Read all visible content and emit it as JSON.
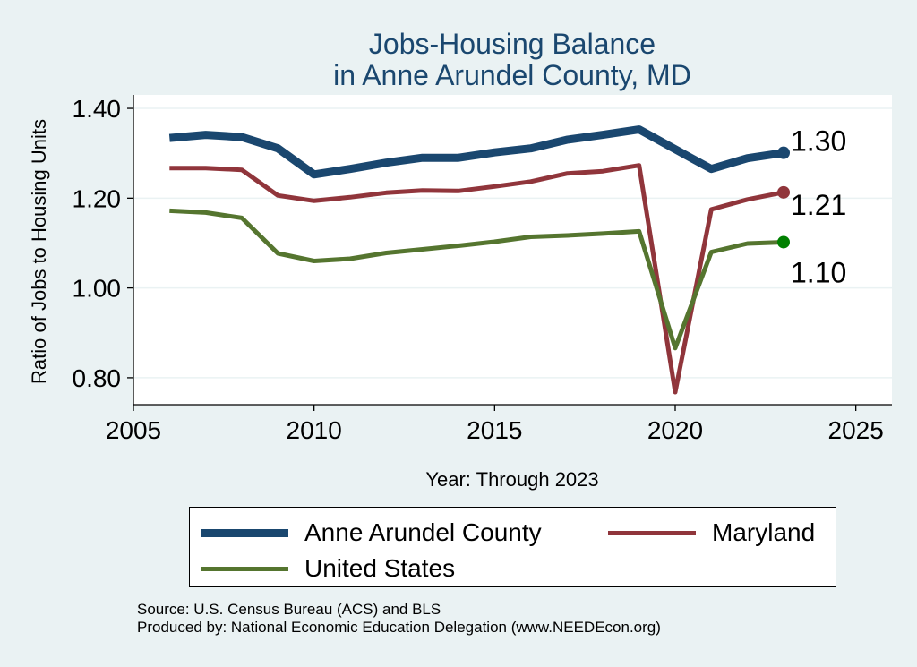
{
  "chart_data": {
    "type": "line",
    "title": "Jobs-Housing Balance",
    "subtitle": "in Anne Arundel County, MD",
    "xlabel": "Year: Through 2023",
    "ylabel": "Ratio of Jobs to Housing Units",
    "xlim": [
      2005,
      2026
    ],
    "ylim": [
      0.74,
      1.43
    ],
    "x_ticks": [
      2005,
      2010,
      2015,
      2020,
      2025
    ],
    "y_ticks": [
      0.8,
      1.0,
      1.2,
      1.4
    ],
    "y_tick_labels": [
      "0.80",
      "1.00",
      "1.20",
      "1.40"
    ],
    "grid": true,
    "legend_position": "bottom",
    "x": [
      2006,
      2007,
      2008,
      2009,
      2010,
      2011,
      2012,
      2013,
      2014,
      2015,
      2016,
      2017,
      2018,
      2019,
      2020,
      2021,
      2022,
      2023
    ],
    "series": [
      {
        "name": "Anne Arundel County",
        "color": "#1a476f",
        "values": [
          1.334,
          1.341,
          1.336,
          1.311,
          1.253,
          1.265,
          1.279,
          1.29,
          1.29,
          1.302,
          1.311,
          1.33,
          1.341,
          1.353,
          1.309,
          1.265,
          1.289,
          1.301
        ],
        "end_label": "1.30"
      },
      {
        "name": "Maryland",
        "color": "#90353b",
        "values": [
          1.267,
          1.267,
          1.263,
          1.206,
          1.194,
          1.202,
          1.212,
          1.217,
          1.216,
          1.226,
          1.237,
          1.255,
          1.26,
          1.273,
          0.768,
          1.175,
          1.197,
          1.213
        ],
        "end_label": "1.21"
      },
      {
        "name": "United States",
        "color": "#55752f",
        "end_marker_color": "#008000",
        "values": [
          1.172,
          1.168,
          1.156,
          1.077,
          1.06,
          1.065,
          1.078,
          1.086,
          1.094,
          1.103,
          1.114,
          1.117,
          1.121,
          1.126,
          0.866,
          1.08,
          1.099,
          1.102
        ],
        "end_label": "1.10"
      }
    ]
  },
  "legend": {
    "items": [
      "Anne Arundel County",
      "Maryland",
      "United States"
    ]
  },
  "source": {
    "line1": "Source: U.S. Census Bureau (ACS) and BLS",
    "line2": "Produced by: National Economic Education Delegation (www.NEEDEcon.org)"
  }
}
